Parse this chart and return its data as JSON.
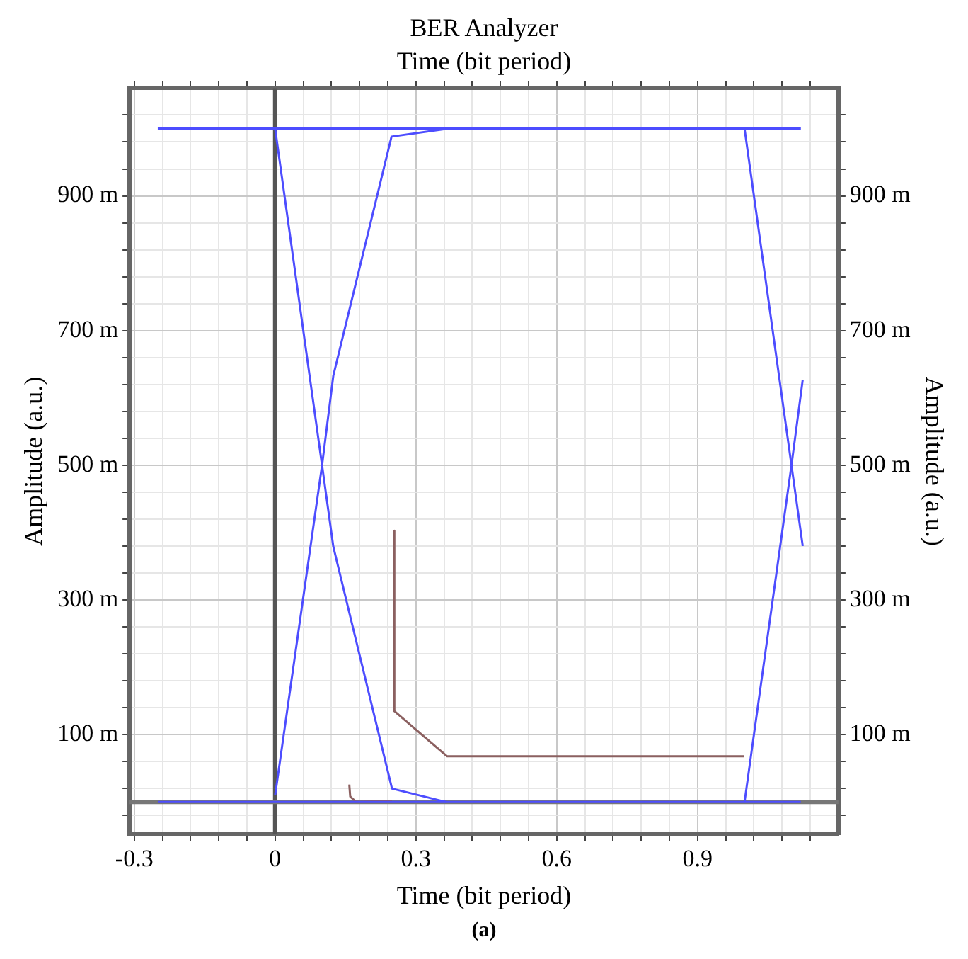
{
  "chart_data": {
    "type": "line",
    "title": "BER Analyzer",
    "x2label": "Time (bit period)",
    "xlabel": "Time (bit period)",
    "ylabel": "Amplitude (a.u.)",
    "y2label": "Amplitude (a.u.)",
    "annotations": [
      "(a)"
    ],
    "xlim": [
      -0.31,
      1.2
    ],
    "ylim": [
      -48,
      1060
    ],
    "y2lim": [
      -48,
      1060
    ],
    "xticks": [
      {
        "value": -0.3,
        "label": "-0.3"
      },
      {
        "value": -0.24,
        "label": null
      },
      {
        "value": -0.18,
        "label": null
      },
      {
        "value": -0.12,
        "label": null
      },
      {
        "value": -0.06,
        "label": null
      },
      0,
      {
        "value": 0.06,
        "label": null
      },
      {
        "value": 0.12,
        "label": null
      },
      {
        "value": 0.18,
        "label": null
      },
      {
        "value": 0.24,
        "label": null
      },
      0.3,
      {
        "value": 0.36,
        "label": null
      },
      {
        "value": 0.42,
        "label": null
      },
      {
        "value": 0.48,
        "label": null
      },
      {
        "value": 0.54,
        "label": null
      },
      0.6,
      {
        "value": 0.66,
        "label": null
      },
      {
        "value": 0.72,
        "label": null
      },
      {
        "value": 0.78,
        "label": null
      },
      {
        "value": 0.84,
        "label": null
      },
      0.9,
      {
        "value": 0.96,
        "label": null
      },
      {
        "value": 1.02,
        "label": null
      },
      {
        "value": 1.08,
        "label": null
      },
      {
        "value": 1.14,
        "label": null
      }
    ],
    "yticks": [
      {
        "value": -20,
        "label": null
      },
      {
        "value": 20,
        "label": null
      },
      {
        "value": 60,
        "label": null
      },
      {
        "value": 100,
        "label": "100 m"
      },
      {
        "value": 140,
        "label": null
      },
      {
        "value": 180,
        "label": null
      },
      {
        "value": 220,
        "label": null
      },
      {
        "value": 260,
        "label": null
      },
      {
        "value": 300,
        "label": "300 m"
      },
      {
        "value": 340,
        "label": null
      },
      {
        "value": 380,
        "label": null
      },
      {
        "value": 420,
        "label": null
      },
      {
        "value": 460,
        "label": null
      },
      {
        "value": 500,
        "label": "500 m"
      },
      {
        "value": 540,
        "label": null
      },
      {
        "value": 580,
        "label": null
      },
      {
        "value": 620,
        "label": null
      },
      {
        "value": 660,
        "label": null
      },
      {
        "value": 700,
        "label": "700 m"
      },
      {
        "value": 740,
        "label": null
      },
      {
        "value": 780,
        "label": null
      },
      {
        "value": 820,
        "label": null
      },
      {
        "value": 860,
        "label": null
      },
      {
        "value": 900,
        "label": "900 m"
      },
      {
        "value": 940,
        "label": null
      },
      {
        "value": 980,
        "label": null
      },
      {
        "value": 1020,
        "label": null
      }
    ],
    "y2ticks": [
      {
        "value": -20,
        "label": null
      },
      {
        "value": 20,
        "label": null
      },
      {
        "value": 60,
        "label": null
      },
      {
        "value": 100,
        "label": "100 m"
      },
      {
        "value": 140,
        "label": null
      },
      {
        "value": 180,
        "label": null
      },
      {
        "value": 220,
        "label": null
      },
      {
        "value": 260,
        "label": null
      },
      {
        "value": 300,
        "label": "300 m"
      },
      {
        "value": 340,
        "label": null
      },
      {
        "value": 380,
        "label": null
      },
      {
        "value": 420,
        "label": null
      },
      {
        "value": 460,
        "label": null
      },
      {
        "value": 500,
        "label": "500 m"
      },
      {
        "value": 540,
        "label": null
      },
      {
        "value": 580,
        "label": null
      },
      {
        "value": 620,
        "label": null
      },
      {
        "value": 660,
        "label": null
      },
      {
        "value": 700,
        "label": "700 m"
      },
      {
        "value": 740,
        "label": null
      },
      {
        "value": 780,
        "label": null
      },
      {
        "value": 820,
        "label": null
      },
      {
        "value": 860,
        "label": null
      },
      {
        "value": 900,
        "label": "900 m"
      },
      {
        "value": 940,
        "label": null
      },
      {
        "value": 980,
        "label": null
      },
      {
        "value": 1020,
        "label": null
      }
    ],
    "grid": true,
    "legend": false,
    "marker": "none",
    "line_style": "solid",
    "ref_lines": [
      {
        "axis": "x",
        "value": 0,
        "color": "#555555"
      },
      {
        "axis": "y",
        "value": 0,
        "color": "#777777"
      }
    ],
    "series": [
      {
        "color": "#4d4dff",
        "x": [
          -0.25,
          1.12
        ],
        "values": [
          1000,
          1000
        ]
      },
      {
        "color": "#4d4dff",
        "x": [
          -0.25,
          1.12
        ],
        "values": [
          0,
          0
        ]
      },
      {
        "color": "#4d4dff",
        "x": [
          0,
          0.1,
          0.124,
          0.249,
          0.365
        ],
        "values": [
          1000,
          500,
          379,
          20,
          0
        ]
      },
      {
        "color": "#4d4dff",
        "x": [
          0,
          0.1,
          0.124,
          0.248,
          0.37
        ],
        "values": [
          10,
          500,
          633,
          988,
          1000
        ]
      },
      {
        "color": "#4d4dff",
        "x": [
          1.0,
          1.1,
          1.124
        ],
        "values": [
          1000,
          500,
          380
        ]
      },
      {
        "color": "#4d4dff",
        "x": [
          1.0,
          1.1,
          1.124
        ],
        "values": [
          0,
          500,
          627
        ]
      },
      {
        "color": "#8b6060",
        "x": [
          0.254,
          0.254,
          0.366,
          0.999
        ],
        "values": [
          403,
          135,
          68,
          68
        ]
      },
      {
        "color": "#8b6060",
        "x": [
          0.158,
          0.16,
          0.173,
          0.249
        ],
        "values": [
          26,
          8,
          0,
          2
        ]
      }
    ]
  }
}
